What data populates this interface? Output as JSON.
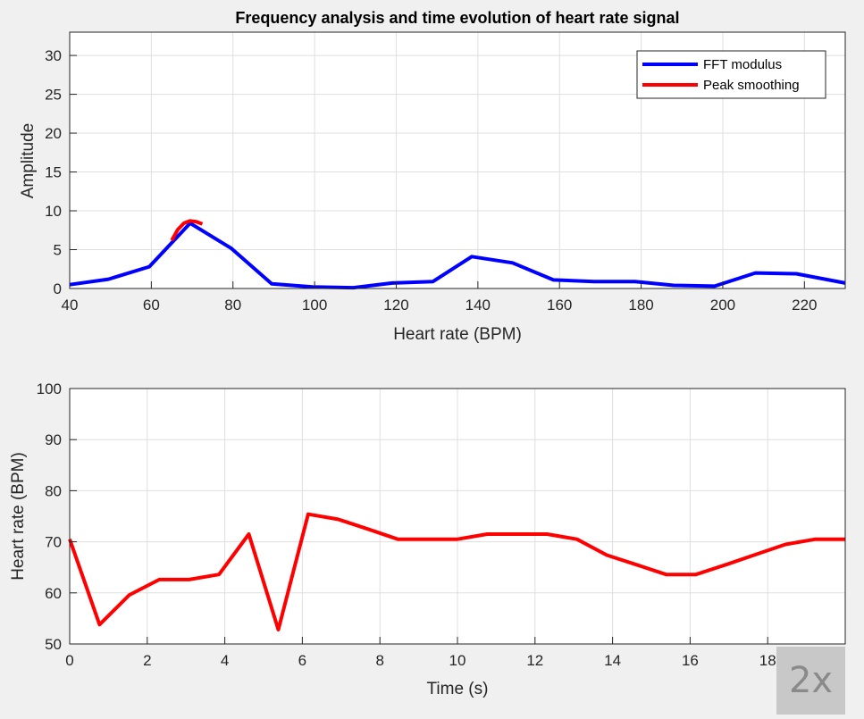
{
  "figure": {
    "title": "Frequency analysis and time evolution of heart rate signal",
    "speed_badge": "2x"
  },
  "chart_data": [
    {
      "type": "line",
      "xlabel": "Heart rate (BPM)",
      "ylabel": "Amplitude",
      "xlim": [
        40,
        230
      ],
      "ylim": [
        0,
        33
      ],
      "xticks": [
        40,
        60,
        80,
        100,
        120,
        140,
        160,
        180,
        200,
        220
      ],
      "yticks": [
        0,
        5,
        10,
        15,
        20,
        25,
        30
      ],
      "grid": true,
      "legend": "top-right",
      "series": [
        {
          "name": "FFT modulus",
          "color": "#0000ff",
          "x": [
            40,
            49.5,
            59.5,
            69.5,
            79.5,
            89.5,
            99.5,
            109.5,
            119,
            129,
            138.5,
            148.5,
            158.5,
            168.5,
            178.5,
            188,
            198,
            208,
            218,
            230
          ],
          "y": [
            0.5,
            1.2,
            2.8,
            8.4,
            5.2,
            0.6,
            0.2,
            0.1,
            0.7,
            0.9,
            4.1,
            3.3,
            1.1,
            0.9,
            0.9,
            0.4,
            0.3,
            2.0,
            1.9,
            0.7
          ]
        },
        {
          "name": "Peak smoothing",
          "color": "#ff0000",
          "x": [
            65,
            66.5,
            68,
            69.5,
            71,
            72.5
          ],
          "y": [
            6.2,
            7.6,
            8.4,
            8.7,
            8.6,
            8.3
          ]
        }
      ]
    },
    {
      "type": "line",
      "xlabel": "Time (s)",
      "ylabel": "Heart rate (BPM)",
      "xlim": [
        0,
        20
      ],
      "ylim": [
        50,
        100
      ],
      "xticks": [
        0,
        2,
        4,
        6,
        8,
        10,
        12,
        14,
        16,
        18
      ],
      "yticks": [
        50,
        60,
        70,
        80,
        90,
        100
      ],
      "grid": true,
      "series": [
        {
          "color": "#ff0000",
          "x": [
            0,
            0.77,
            1.54,
            2.31,
            3.08,
            3.85,
            4.62,
            5.38,
            6.15,
            6.92,
            7.69,
            8.46,
            9.23,
            10,
            10.77,
            11.54,
            12.31,
            13.08,
            13.85,
            14.62,
            15.38,
            16.15,
            16.92,
            17.69,
            18.46,
            19.23,
            20
          ],
          "y": [
            70.5,
            53.8,
            59.6,
            62.6,
            62.6,
            63.6,
            71.5,
            52.8,
            75.4,
            74.4,
            72.5,
            70.5,
            70.5,
            70.5,
            71.5,
            71.5,
            71.5,
            70.5,
            67.4,
            65.5,
            63.6,
            63.6,
            65.5,
            67.5,
            69.5,
            70.5,
            70.5
          ]
        }
      ]
    }
  ]
}
